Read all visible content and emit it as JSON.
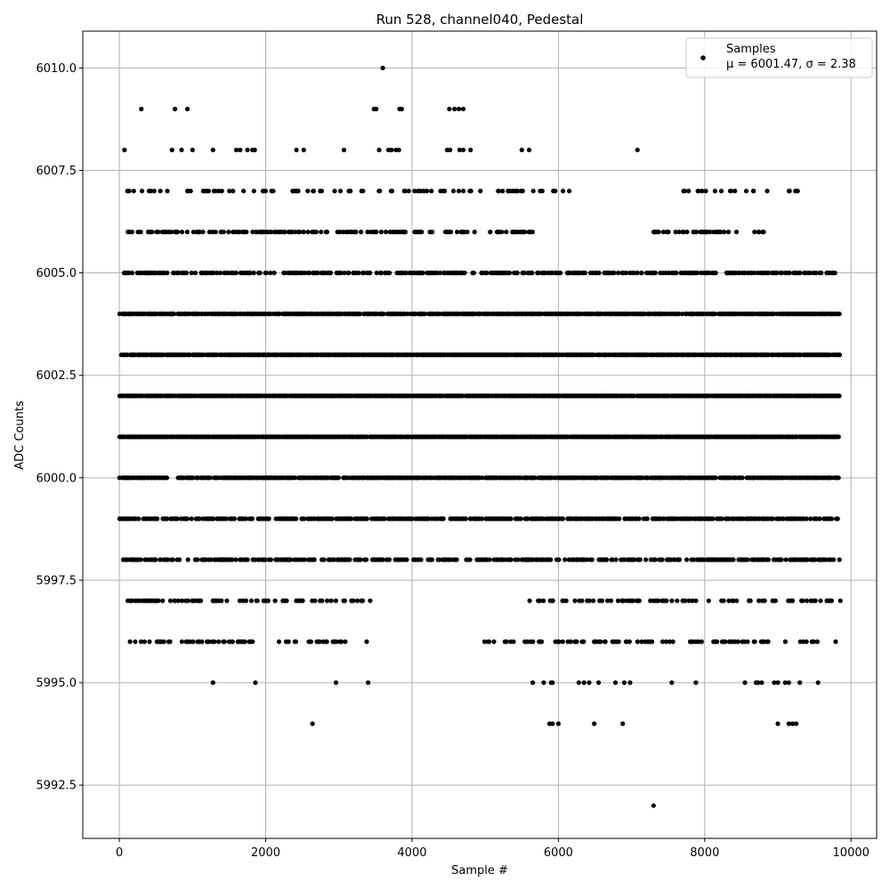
{
  "chart_data": {
    "type": "scatter",
    "title": "Run 528, channel040, Pedestal",
    "xlabel": "Sample #",
    "ylabel": "ADC Counts",
    "xlim": [
      -500,
      10350
    ],
    "ylim": [
      5991.2,
      6010.9
    ],
    "xticks": [
      0,
      2000,
      4000,
      6000,
      8000,
      10000
    ],
    "xtick_labels": [
      "0",
      "2000",
      "4000",
      "6000",
      "8000",
      "10000"
    ],
    "yticks": [
      5992.5,
      5995.0,
      5997.5,
      6000.0,
      6002.5,
      6005.0,
      6007.5,
      6010.0
    ],
    "ytick_labels": [
      "5992.5",
      "5995.0",
      "5997.5",
      "6000.0",
      "6002.5",
      "6005.0",
      "6007.5",
      "6010.0"
    ],
    "grid": true,
    "legend_position": "top-right",
    "series": [
      {
        "name": "Samples",
        "annotation": "μ = 6001.47, σ = 2.38",
        "color": "#000000",
        "marker": "dot",
        "levels": [
          {
            "y": 6001,
            "x_ranges": [
              [
                0,
                9850
              ]
            ],
            "density": 0.95
          },
          {
            "y": 6002,
            "x_ranges": [
              [
                0,
                9850
              ]
            ],
            "density": 0.93
          },
          {
            "y": 6003,
            "x_ranges": [
              [
                0,
                9850
              ]
            ],
            "density": 0.88
          },
          {
            "y": 6004,
            "x_ranges": [
              [
                0,
                9850
              ]
            ],
            "density": 0.75
          },
          {
            "y": 6000,
            "x_ranges": [
              [
                0,
                650
              ],
              [
                800,
                9850
              ]
            ],
            "density": 0.7
          },
          {
            "y": 5999,
            "x_ranges": [
              [
                0,
                9850
              ]
            ],
            "density": 0.55
          },
          {
            "y": 5998,
            "x_ranges": [
              [
                0,
                9850
              ]
            ],
            "density": 0.45
          },
          {
            "y": 6005,
            "x_ranges": [
              [
                0,
                9800
              ]
            ],
            "density": 0.4
          },
          {
            "y": 6006,
            "x_ranges": [
              [
                50,
                5650
              ],
              [
                7300,
                8850
              ]
            ],
            "density": 0.3
          },
          {
            "y": 5997,
            "x_ranges": [
              [
                50,
                3450
              ],
              [
                5600,
                9850
              ]
            ],
            "density": 0.25
          },
          {
            "y": 6007,
            "x_ranges": [
              [
                50,
                6150
              ],
              [
                7600,
                9380
              ]
            ],
            "density": 0.15
          },
          {
            "y": 5996,
            "x_ranges": [
              [
                80,
                3450
              ],
              [
                4950,
                9850
              ]
            ],
            "density": 0.18
          }
        ],
        "extra_points": [
          [
            70,
            6008
          ],
          [
            720,
            6008
          ],
          [
            850,
            6008
          ],
          [
            1000,
            6008
          ],
          [
            1280,
            6008
          ],
          [
            1600,
            6008
          ],
          [
            1650,
            6008
          ],
          [
            1750,
            6008
          ],
          [
            1820,
            6008
          ],
          [
            1850,
            6008
          ],
          [
            2420,
            6008
          ],
          [
            2520,
            6008
          ],
          [
            3070,
            6008
          ],
          [
            3550,
            6008
          ],
          [
            3680,
            6008
          ],
          [
            3720,
            6008
          ],
          [
            3780,
            6008
          ],
          [
            3820,
            6008
          ],
          [
            4480,
            6008
          ],
          [
            4520,
            6008
          ],
          [
            4650,
            6008
          ],
          [
            4700,
            6008
          ],
          [
            4800,
            6008
          ],
          [
            5500,
            6008
          ],
          [
            5600,
            6008
          ],
          [
            7080,
            6008
          ],
          [
            300,
            6009
          ],
          [
            760,
            6009
          ],
          [
            930,
            6009
          ],
          [
            3480,
            6009
          ],
          [
            3510,
            6009
          ],
          [
            3830,
            6009
          ],
          [
            3860,
            6009
          ],
          [
            4510,
            6009
          ],
          [
            4580,
            6009
          ],
          [
            4640,
            6009
          ],
          [
            4700,
            6009
          ],
          [
            3600,
            6010
          ],
          [
            1280,
            5995
          ],
          [
            1860,
            5995
          ],
          [
            2960,
            5995
          ],
          [
            3400,
            5995
          ],
          [
            5650,
            5995
          ],
          [
            5800,
            5995
          ],
          [
            5900,
            5995
          ],
          [
            5920,
            5995
          ],
          [
            6280,
            5995
          ],
          [
            6350,
            5995
          ],
          [
            6420,
            5995
          ],
          [
            6550,
            5995
          ],
          [
            6780,
            5995
          ],
          [
            6900,
            5995
          ],
          [
            6980,
            5995
          ],
          [
            7550,
            5995
          ],
          [
            7880,
            5995
          ],
          [
            8550,
            5995
          ],
          [
            8700,
            5995
          ],
          [
            8730,
            5995
          ],
          [
            8780,
            5995
          ],
          [
            8950,
            5995
          ],
          [
            9000,
            5995
          ],
          [
            9100,
            5995
          ],
          [
            9150,
            5995
          ],
          [
            9300,
            5995
          ],
          [
            9550,
            5995
          ],
          [
            2640,
            5994
          ],
          [
            5880,
            5994
          ],
          [
            5920,
            5994
          ],
          [
            6000,
            5994
          ],
          [
            6490,
            5994
          ],
          [
            6880,
            5994
          ],
          [
            9000,
            5994
          ],
          [
            9150,
            5994
          ],
          [
            9200,
            5994
          ],
          [
            9250,
            5994
          ],
          [
            7300,
            5992
          ]
        ]
      }
    ]
  }
}
